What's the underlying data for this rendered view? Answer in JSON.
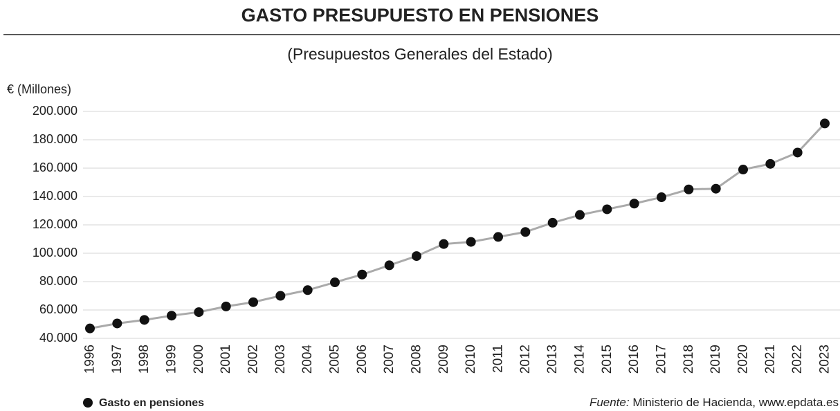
{
  "chart_data": {
    "type": "line",
    "title": "GASTO PRESUPUESTO EN PENSIONES",
    "subtitle": "(Presupuestos Generales del Estado)",
    "y_label": "€ (Millones)",
    "categories": [
      "1996",
      "1997",
      "1998",
      "1999",
      "2000",
      "2001",
      "2002",
      "2003",
      "2004",
      "2005",
      "2006",
      "2007",
      "2008",
      "2009",
      "2010",
      "2011",
      "2012",
      "2013",
      "2014",
      "2015",
      "2016",
      "2017",
      "2018",
      "2019",
      "2020",
      "2021",
      "2022",
      "2023"
    ],
    "series": [
      {
        "name": "Gasto en pensiones",
        "color": "#aaaaaa",
        "marker_color": "#111111",
        "values": [
          47000,
          50500,
          53000,
          56000,
          58500,
          62500,
          65500,
          70000,
          74000,
          79500,
          85000,
          91500,
          98000,
          106500,
          108000,
          111500,
          115000,
          121500,
          127000,
          131000,
          135000,
          139500,
          145000,
          145500,
          159000,
          163000,
          171000,
          191500
        ]
      }
    ],
    "ylim": [
      40000,
      200000
    ],
    "yticks": [
      {
        "value": 40000,
        "label": "40.000"
      },
      {
        "value": 60000,
        "label": "60.000"
      },
      {
        "value": 80000,
        "label": "80.000"
      },
      {
        "value": 100000,
        "label": "100.000"
      },
      {
        "value": 120000,
        "label": "120.000"
      },
      {
        "value": 140000,
        "label": "140.000"
      },
      {
        "value": 160000,
        "label": "160.000"
      },
      {
        "value": 180000,
        "label": "180.000"
      },
      {
        "value": 200000,
        "label": "200.000"
      }
    ],
    "grid": true,
    "source_label": "Fuente:",
    "source": "Ministerio de Hacienda, www.epdata.es"
  }
}
